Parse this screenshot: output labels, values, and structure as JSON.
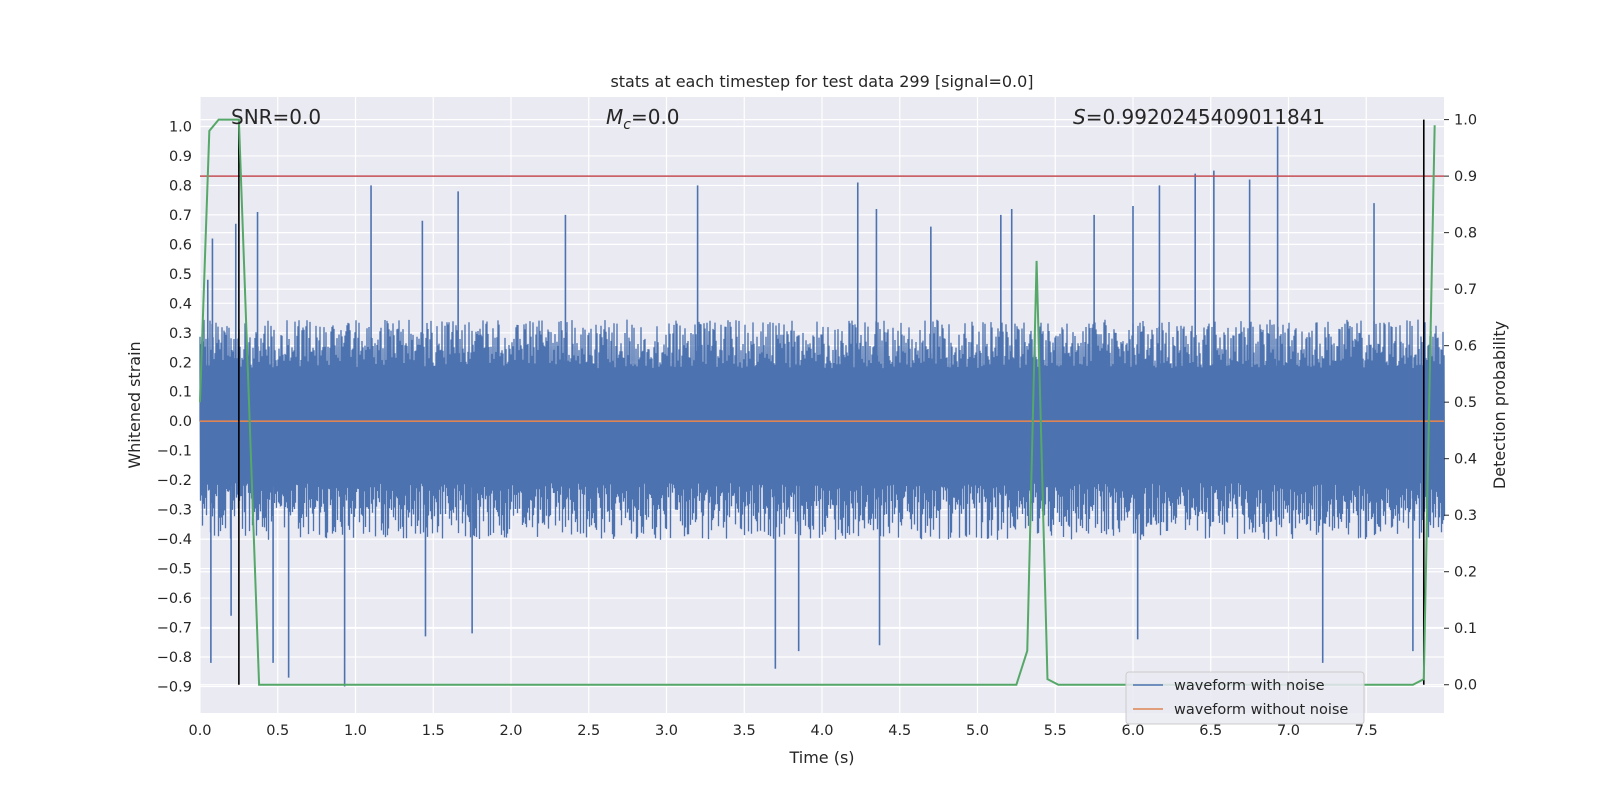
{
  "chart_data": {
    "type": "line",
    "title": "stats at each timestep for test data 299 [signal=0.0]",
    "xlabel": "Time (s)",
    "ylabel": "Whitened strain",
    "y2label": "Detection probability",
    "xlim": [
      0.0,
      8.0
    ],
    "ylim": [
      -0.99,
      1.1
    ],
    "y2lim": [
      -0.05,
      1.04
    ],
    "x_ticks": [
      "0.0",
      "0.5",
      "1.0",
      "1.5",
      "2.0",
      "2.5",
      "3.0",
      "3.5",
      "4.0",
      "4.5",
      "5.0",
      "5.5",
      "6.0",
      "6.5",
      "7.0",
      "7.5"
    ],
    "y_ticks": [
      "1.0",
      "0.9",
      "0.8",
      "0.7",
      "0.6",
      "0.5",
      "0.4",
      "0.3",
      "0.2",
      "0.1",
      "0.0",
      "−0.1",
      "−0.2",
      "−0.3",
      "−0.4",
      "−0.5",
      "−0.6",
      "−0.7",
      "−0.8",
      "−0.9"
    ],
    "y2_ticks": [
      "1.0",
      "0.9",
      "0.8",
      "0.7",
      "0.6",
      "0.5",
      "0.4",
      "0.3",
      "0.2",
      "0.1",
      "0.0"
    ],
    "annotations": {
      "snr": "SNR=0.0",
      "mc": "=0.0",
      "mc_symbol": "M",
      "mc_sub": "c",
      "s": "=0.9920245409011841",
      "s_symbol": "S"
    },
    "series": [
      {
        "name": "waveform with noise",
        "color": "#4c72b0",
        "axis": "left",
        "band_max": 0.3,
        "band_min": -0.35,
        "spikes": [
          {
            "x": 0.05,
            "y": 0.48
          },
          {
            "x": 0.07,
            "y": -0.82
          },
          {
            "x": 0.08,
            "y": 0.62
          },
          {
            "x": 0.2,
            "y": -0.66
          },
          {
            "x": 0.23,
            "y": 0.67
          },
          {
            "x": 0.37,
            "y": 0.71
          },
          {
            "x": 0.47,
            "y": -0.82
          },
          {
            "x": 0.57,
            "y": -0.87
          },
          {
            "x": 0.93,
            "y": -0.9
          },
          {
            "x": 1.1,
            "y": 0.8
          },
          {
            "x": 1.43,
            "y": 0.68
          },
          {
            "x": 1.45,
            "y": -0.73
          },
          {
            "x": 1.66,
            "y": 0.78
          },
          {
            "x": 1.75,
            "y": -0.72
          },
          {
            "x": 2.35,
            "y": 0.7
          },
          {
            "x": 3.2,
            "y": 0.8
          },
          {
            "x": 3.7,
            "y": -0.84
          },
          {
            "x": 3.85,
            "y": -0.78
          },
          {
            "x": 4.23,
            "y": 0.81
          },
          {
            "x": 4.35,
            "y": 0.72
          },
          {
            "x": 4.37,
            "y": -0.76
          },
          {
            "x": 4.7,
            "y": 0.66
          },
          {
            "x": 5.15,
            "y": 0.7
          },
          {
            "x": 5.22,
            "y": 0.72
          },
          {
            "x": 5.75,
            "y": 0.7
          },
          {
            "x": 6.0,
            "y": 0.73
          },
          {
            "x": 6.03,
            "y": -0.74
          },
          {
            "x": 6.17,
            "y": 0.8
          },
          {
            "x": 6.4,
            "y": 0.84
          },
          {
            "x": 6.52,
            "y": 0.85
          },
          {
            "x": 6.75,
            "y": 0.82
          },
          {
            "x": 6.93,
            "y": 1.0
          },
          {
            "x": 7.22,
            "y": -0.82
          },
          {
            "x": 7.55,
            "y": 0.74
          },
          {
            "x": 7.8,
            "y": -0.78
          }
        ]
      },
      {
        "name": "waveform without noise",
        "color": "#dd8452",
        "axis": "left",
        "x": [
          0.0,
          8.0
        ],
        "y": [
          0.0,
          0.0
        ]
      },
      {
        "name": "",
        "color": "#55a868",
        "axis": "right",
        "x": [
          0.0,
          0.06,
          0.12,
          0.25,
          0.38,
          5.25,
          5.32,
          5.38,
          5.45,
          5.52,
          7.8,
          7.87,
          7.94
        ],
        "y": [
          0.5,
          0.98,
          1.0,
          1.0,
          0.0,
          0.0,
          0.06,
          0.75,
          0.01,
          0.0,
          0.0,
          0.01,
          0.99
        ]
      }
    ],
    "threshold": {
      "axis": "right",
      "y": 0.9,
      "color": "#c44e52"
    },
    "vlines": [
      {
        "x": 0.25,
        "color": "#000000"
      },
      {
        "x": 7.87,
        "color": "#000000"
      }
    ],
    "grid": true,
    "legend": "lower-right",
    "colors": {
      "background": "#eaeaf2",
      "grid": "#ffffff",
      "text": "#262626"
    }
  }
}
